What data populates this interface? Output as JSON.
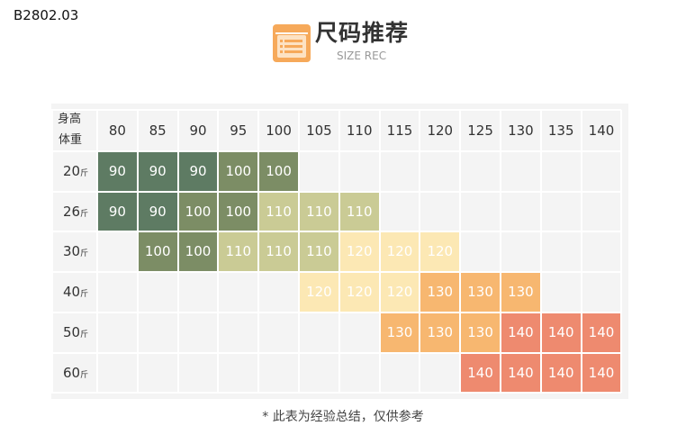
{
  "product_code": "B2802.03",
  "header": {
    "title": "尺码推荐",
    "subtitle": "SIZE REC",
    "icon": "size-chart-icon",
    "icon_color": "#f6a95a"
  },
  "table": {
    "corner_top": "身高",
    "corner_bottom": "体重",
    "heights": [
      "80",
      "85",
      "90",
      "95",
      "100",
      "105",
      "110",
      "115",
      "120",
      "125",
      "130",
      "135",
      "140"
    ],
    "rows": [
      {
        "weight": "20",
        "unit": "斤",
        "cells": [
          "90",
          "90",
          "90",
          "100",
          "100",
          null,
          null,
          null,
          null,
          null,
          null,
          null,
          null
        ]
      },
      {
        "weight": "26",
        "unit": "斤",
        "cells": [
          "90",
          "90",
          "100",
          "100",
          "110",
          "110",
          "110",
          null,
          null,
          null,
          null,
          null,
          null
        ]
      },
      {
        "weight": "30",
        "unit": "斤",
        "cells": [
          null,
          "100",
          "100",
          "110",
          "110",
          "110",
          "120",
          "120",
          "120",
          null,
          null,
          null,
          null
        ]
      },
      {
        "weight": "40",
        "unit": "斤",
        "cells": [
          null,
          null,
          null,
          null,
          null,
          "120",
          "120",
          "120",
          "130",
          "130",
          "130",
          null,
          null
        ]
      },
      {
        "weight": "50",
        "unit": "斤",
        "cells": [
          null,
          null,
          null,
          null,
          null,
          null,
          null,
          "130",
          "130",
          "130",
          "140",
          "140",
          "140"
        ]
      },
      {
        "weight": "60",
        "unit": "斤",
        "cells": [
          null,
          null,
          null,
          null,
          null,
          null,
          null,
          null,
          null,
          "140",
          "140",
          "140",
          "140"
        ]
      }
    ],
    "size_colors": {
      "90": "#5e7b63",
      "100": "#7c8d65",
      "110": "#cacb95",
      "120": "#fce8b4",
      "130": "#f7b770",
      "140": "#ee8a6f"
    }
  },
  "note": "* 此表为经验总结，仅供参考"
}
